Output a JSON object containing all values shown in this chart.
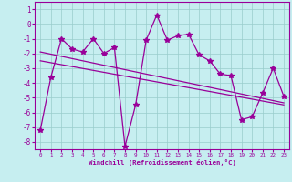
{
  "x": [
    0,
    1,
    2,
    3,
    4,
    5,
    6,
    7,
    8,
    9,
    10,
    11,
    12,
    13,
    14,
    15,
    16,
    17,
    18,
    19,
    20,
    21,
    22,
    23
  ],
  "y_main": [
    -7.2,
    -3.6,
    -1.0,
    -1.7,
    -1.9,
    -1.0,
    -2.0,
    -1.6,
    -8.3,
    -5.5,
    -1.1,
    0.6,
    -1.1,
    -0.8,
    -0.7,
    -2.1,
    -2.5,
    -3.4,
    -3.5,
    -6.5,
    -6.3,
    -4.7,
    -3.0,
    -4.9
  ],
  "y_trend1": [
    -1.9,
    -2.05,
    -2.2,
    -2.35,
    -2.5,
    -2.65,
    -2.8,
    -2.95,
    -3.1,
    -3.25,
    -3.4,
    -3.55,
    -3.7,
    -3.85,
    -4.0,
    -4.15,
    -4.3,
    -4.45,
    -4.6,
    -4.75,
    -4.9,
    -5.05,
    -5.2,
    -5.35
  ],
  "y_trend2": [
    -2.5,
    -2.63,
    -2.76,
    -2.89,
    -3.02,
    -3.15,
    -3.28,
    -3.41,
    -3.54,
    -3.67,
    -3.8,
    -3.93,
    -4.06,
    -4.19,
    -4.32,
    -4.45,
    -4.58,
    -4.71,
    -4.84,
    -4.97,
    -5.1,
    -5.23,
    -5.36,
    -5.49
  ],
  "bg_color": "#c6eef0",
  "line_color": "#990099",
  "grid_color": "#99cccc",
  "xlabel": "Windchill (Refroidissement éolien,°C)",
  "ylim": [
    -8.5,
    1.5
  ],
  "xlim": [
    -0.5,
    23.5
  ],
  "yticks": [
    1,
    0,
    -1,
    -2,
    -3,
    -4,
    -5,
    -6,
    -7,
    -8
  ],
  "xticks": [
    0,
    1,
    2,
    3,
    4,
    5,
    6,
    7,
    8,
    9,
    10,
    11,
    12,
    13,
    14,
    15,
    16,
    17,
    18,
    19,
    20,
    21,
    22,
    23
  ],
  "marker": "*",
  "markersize": 4,
  "linewidth": 0.9
}
